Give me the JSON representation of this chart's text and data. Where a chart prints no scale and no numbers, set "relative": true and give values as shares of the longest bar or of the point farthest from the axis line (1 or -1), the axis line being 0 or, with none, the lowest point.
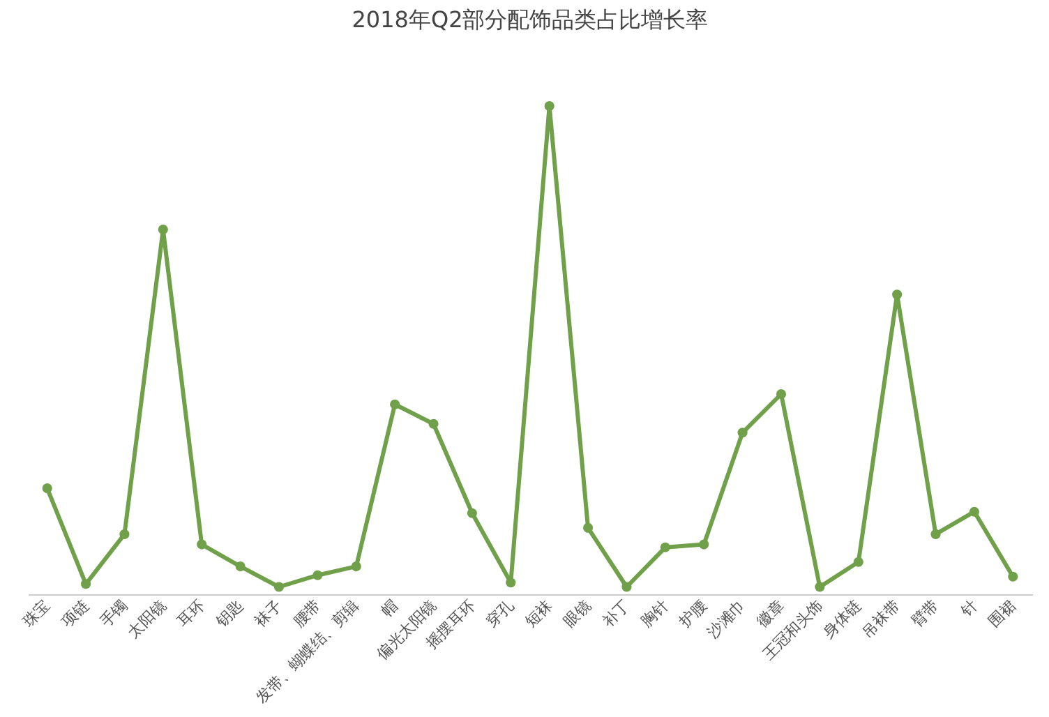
{
  "chart_data": {
    "type": "line",
    "title": "2018年Q2部分配饰品类占比增长率",
    "relative": true,
    "marker": "circle",
    "grid": false,
    "legend": false,
    "categories": [
      "珠宝",
      "项链",
      "手镯",
      "太阳镜",
      "耳环",
      "钥匙",
      "袜子",
      "腰带",
      "发带、蝴蝶结、剪辑",
      "帽",
      "偏光太阳镜",
      "摇摆耳环",
      "穿孔",
      "短袜",
      "眼镜",
      "补丁",
      "胸针",
      "护腰",
      "沙滩巾",
      "徽章",
      "王冠和头饰",
      "身体链",
      "吊袜带",
      "臂带",
      "针",
      "围裙"
    ],
    "series": [
      {
        "color": "#70a04a",
        "values": [
          0.217,
          0.021,
          0.123,
          0.747,
          0.102,
          0.057,
          0.015,
          0.039,
          0.057,
          0.389,
          0.349,
          0.166,
          0.024,
          1,
          0.136,
          0.015,
          0.096,
          0.102,
          0.331,
          0.41,
          0.015,
          0.066,
          0.614,
          0.123,
          0.169,
          0.036
        ]
      }
    ]
  }
}
